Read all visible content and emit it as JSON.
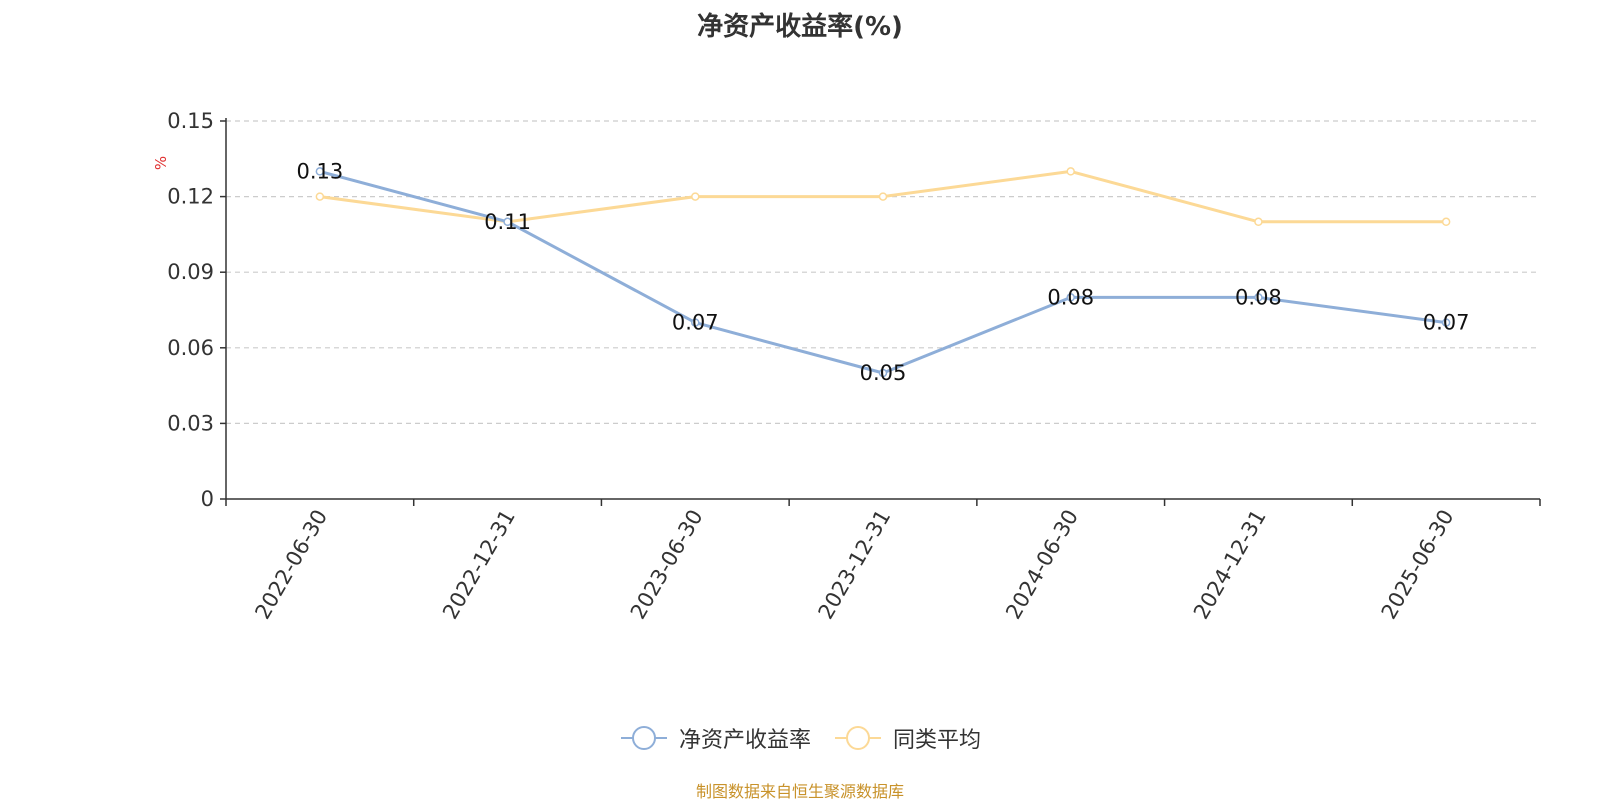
{
  "chart_data": {
    "type": "line",
    "title": "净资产收益率(%)",
    "ylabel": "%",
    "categories": [
      "2022-06-30",
      "2022-12-31",
      "2023-06-30",
      "2023-12-31",
      "2024-06-30",
      "2024-12-31",
      "2025-06-30"
    ],
    "ylim": [
      0,
      0.15
    ],
    "yticks": [
      "0",
      "0.03",
      "0.06",
      "0.09",
      "0.12",
      "0.15"
    ],
    "grid": true,
    "legend_position": "bottom",
    "series": [
      {
        "name": "净资产收益率",
        "color": "#8eaed8",
        "values": [
          0.13,
          0.11,
          0.07,
          0.05,
          0.08,
          0.08,
          0.07
        ],
        "labels": [
          "0.13",
          "0.11",
          "0.07",
          "0.05",
          "0.08",
          "0.08",
          "0.07"
        ]
      },
      {
        "name": "同类平均",
        "color": "#fcd996",
        "values": [
          0.12,
          0.11,
          0.12,
          0.12,
          0.13,
          0.11,
          0.11
        ]
      }
    ]
  },
  "source_note": "制图数据来自恒生聚源数据库"
}
